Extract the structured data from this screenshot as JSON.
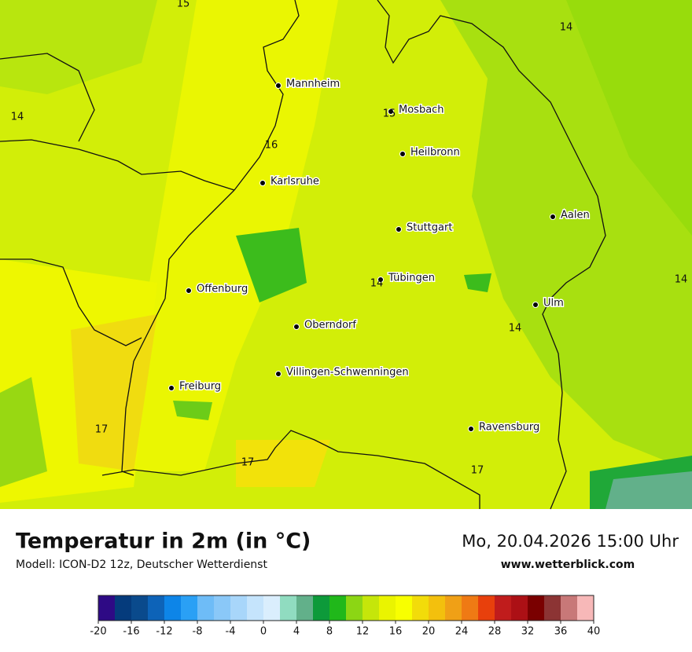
{
  "map": {
    "cities": [
      "Mannheim",
      "Mosbach",
      "Heilbronn",
      "Karlsruhe",
      "Stuttgart",
      "Aalen",
      "Tübingen",
      "Offenburg",
      "Ulm",
      "Oberndorf",
      "Villingen-Schwenningen",
      "Freiburg",
      "Ravensburg"
    ],
    "contour_labels": [
      15,
      14,
      14,
      16,
      15,
      14,
      14,
      14,
      17,
      17,
      17
    ]
  },
  "title": "Temperatur in 2m (in °C)",
  "model": "Modell: ICON-D2 12z, Deutscher Wetterdienst",
  "date": "Mo, 20.04.2026 15:00 Uhr",
  "site": "www.wetterblick.com",
  "colorbar": {
    "ticks": [
      -20,
      -16,
      -12,
      -8,
      -4,
      0,
      4,
      8,
      12,
      16,
      20,
      24,
      28,
      32,
      36,
      40
    ],
    "colors": [
      "#2e0a85",
      "#053b7c",
      "#0a4a8c",
      "#0d63b8",
      "#0d85e8",
      "#2aa0f5",
      "#6ebcf7",
      "#8ac8f8",
      "#a8d6fa",
      "#c5e4fc",
      "#daeefd",
      "#90dcc0",
      "#62b08a",
      "#0d9a3a",
      "#20b81a",
      "#8cd614",
      "#c5e60a",
      "#eaf400",
      "#f8ff00",
      "#f2dc0a",
      "#f3c00d",
      "#f0a016",
      "#ef7a14",
      "#e8400c",
      "#c01c1c",
      "#ac1015",
      "#7a0000",
      "#8c3434",
      "#c87878",
      "#f7b8b8"
    ]
  }
}
